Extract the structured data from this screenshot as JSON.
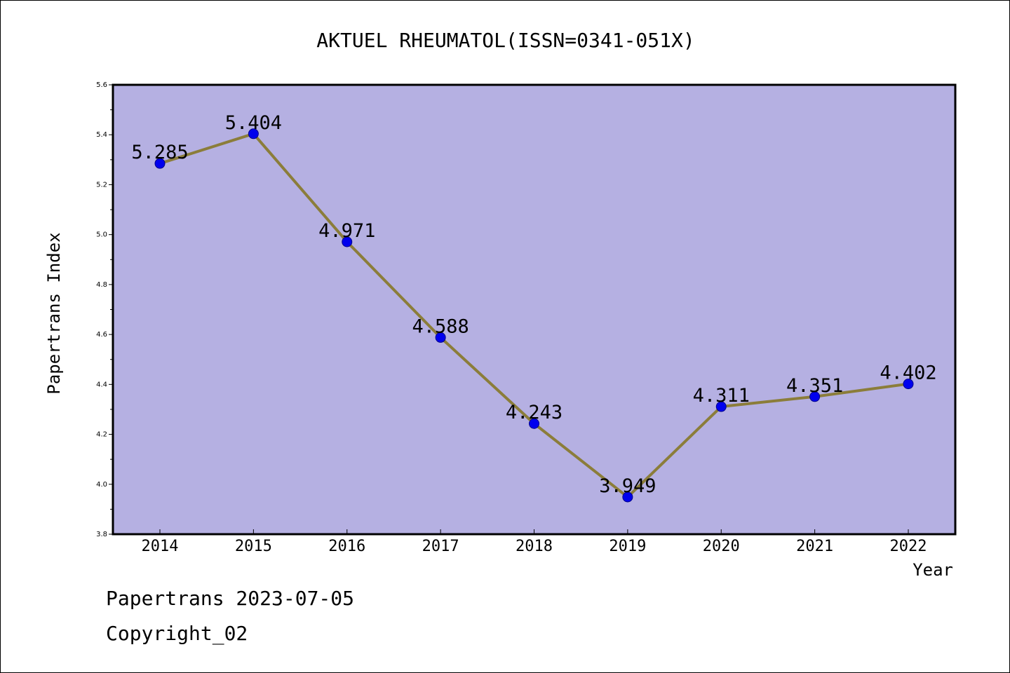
{
  "chart_data": {
    "type": "line",
    "title": "AKTUEL RHEUMATOL(ISSN=0341-051X)",
    "xlabel": "Year",
    "ylabel": "Papertrans Index",
    "categories": [
      "2014",
      "2015",
      "2016",
      "2017",
      "2018",
      "2019",
      "2020",
      "2021",
      "2022"
    ],
    "series": [
      {
        "values": [
          5.285,
          5.404,
          4.971,
          4.588,
          4.243,
          3.949,
          4.311,
          4.351,
          4.402
        ],
        "labels": [
          "5.285",
          "5.404",
          "4.971",
          "4.588",
          "4.243",
          "3.949",
          "4.311",
          "4.351",
          "4.402"
        ]
      }
    ],
    "ylim": [
      3.8,
      5.6
    ],
    "yticks": [
      "3.8",
      "4.0",
      "4.2",
      "4.4",
      "4.6",
      "4.8",
      "5.0",
      "5.2",
      "5.4",
      "5.6"
    ],
    "grid": false,
    "legend": "none",
    "colors": {
      "plot_background": "#b5b0e2",
      "line": "#8b7d3a",
      "marker": "#0000ee"
    }
  },
  "footer": {
    "line1": "Papertrans 2023-07-05",
    "line2": "Copyright_02"
  }
}
